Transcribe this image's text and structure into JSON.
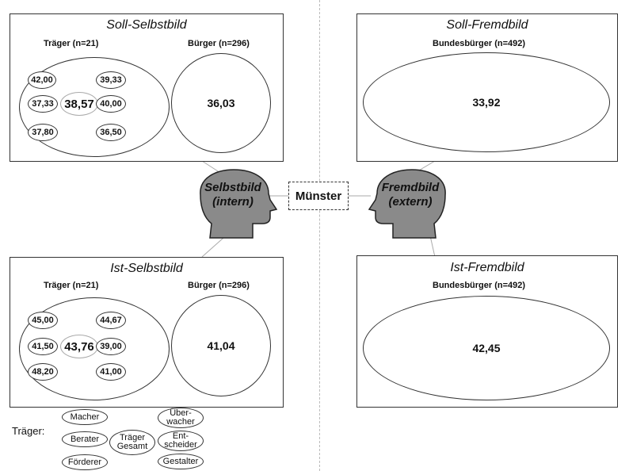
{
  "panels": {
    "soll_selbst": {
      "title": "Soll-Selbstbild",
      "traeger_label": "Träger (n=21)",
      "buerger_label": "Bürger (n=296)",
      "traeger_values": [
        "42,00",
        "39,33",
        "37,33",
        "40,00",
        "37,80",
        "36,50"
      ],
      "traeger_total": "38,57",
      "buerger_value": "36,03"
    },
    "soll_fremd": {
      "title": "Soll-Fremdbild",
      "label": "Bundesbürger (n=492)",
      "value": "33,92"
    },
    "ist_selbst": {
      "title": "Ist-Selbstbild",
      "traeger_label": "Träger (n=21)",
      "buerger_label": "Bürger (n=296)",
      "traeger_values": [
        "45,00",
        "44,67",
        "41,50",
        "39,00",
        "48,20",
        "41,00"
      ],
      "traeger_total": "43,76",
      "buerger_value": "41,04"
    },
    "ist_fremd": {
      "title": "Ist-Fremdbild",
      "label": "Bundesbürger (n=492)",
      "value": "42,45"
    }
  },
  "center": {
    "left_head_line1": "Selbstbild",
    "left_head_line2": "(intern)",
    "right_head_line1": "Fremdbild",
    "right_head_line2": "(extern)",
    "city": "Münster"
  },
  "legend": {
    "label": "Träger:",
    "items": {
      "macher": "Macher",
      "berater": "Berater",
      "foerderer": "Förderer",
      "traeger_gesamt_1": "Träger",
      "traeger_gesamt_2": "Gesamt",
      "ueberwacher_1": "Über-",
      "ueberwacher_2": "wacher",
      "entscheider_1": "Ent-",
      "entscheider_2": "scheider",
      "gestalter": "Gestalter"
    }
  },
  "colors": {
    "head_fill": "#8a8a8a",
    "line": "#333333",
    "connector": "#aaaaaa"
  }
}
